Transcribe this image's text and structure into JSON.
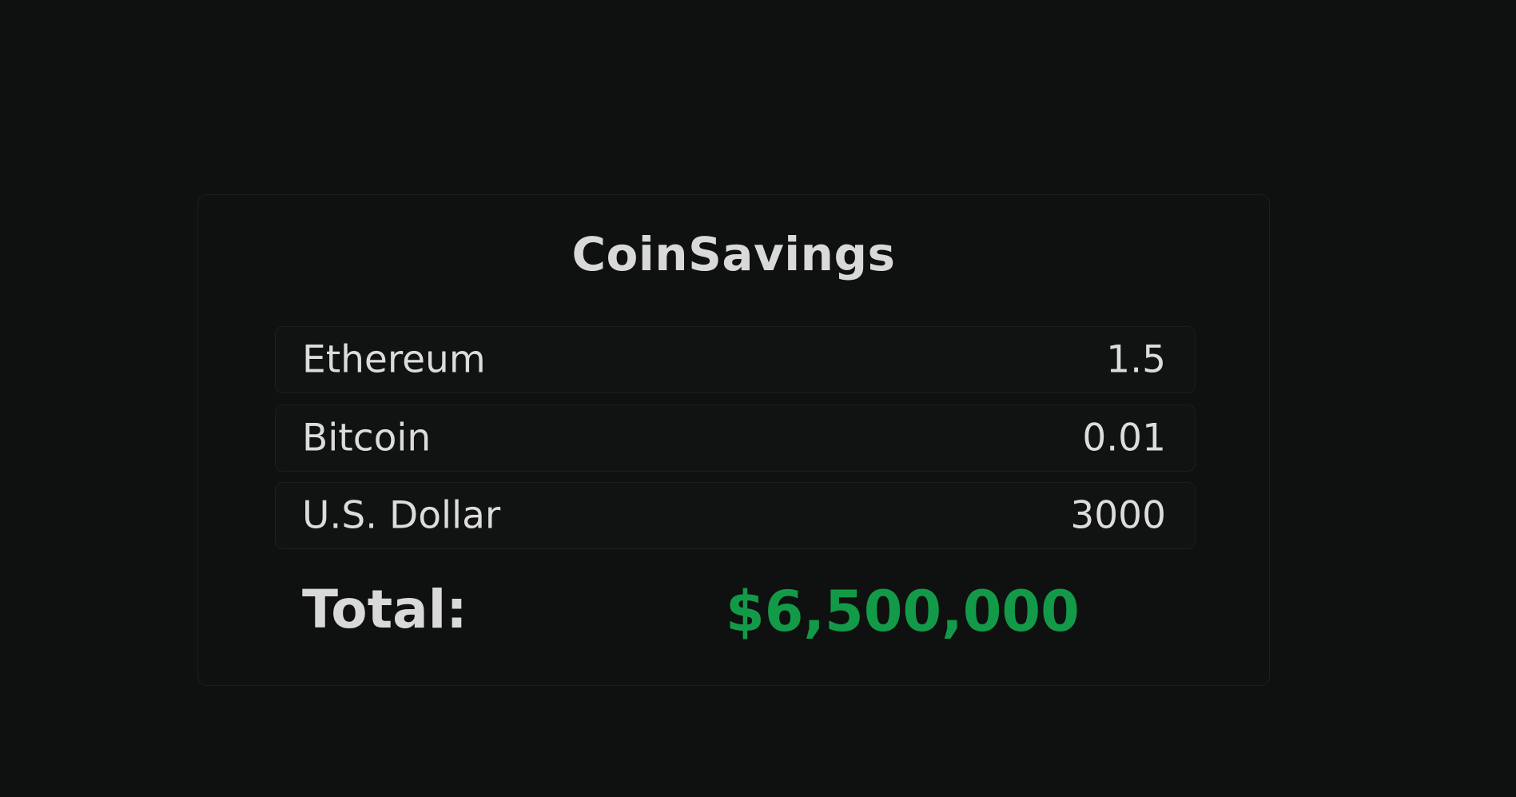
{
  "app": {
    "title": "CoinSavings"
  },
  "holdings": [
    {
      "label": "Ethereum",
      "value": "1.5"
    },
    {
      "label": "Bitcoin",
      "value": "0.01"
    },
    {
      "label": "U.S. Dollar",
      "value": "3000"
    }
  ],
  "total": {
    "label": "Total:",
    "value": "$6,500,000"
  },
  "colors": {
    "background": "#0f1010",
    "text": "#d9d9d9",
    "total_accent": "#139a48",
    "border": "#1d1f1f"
  }
}
